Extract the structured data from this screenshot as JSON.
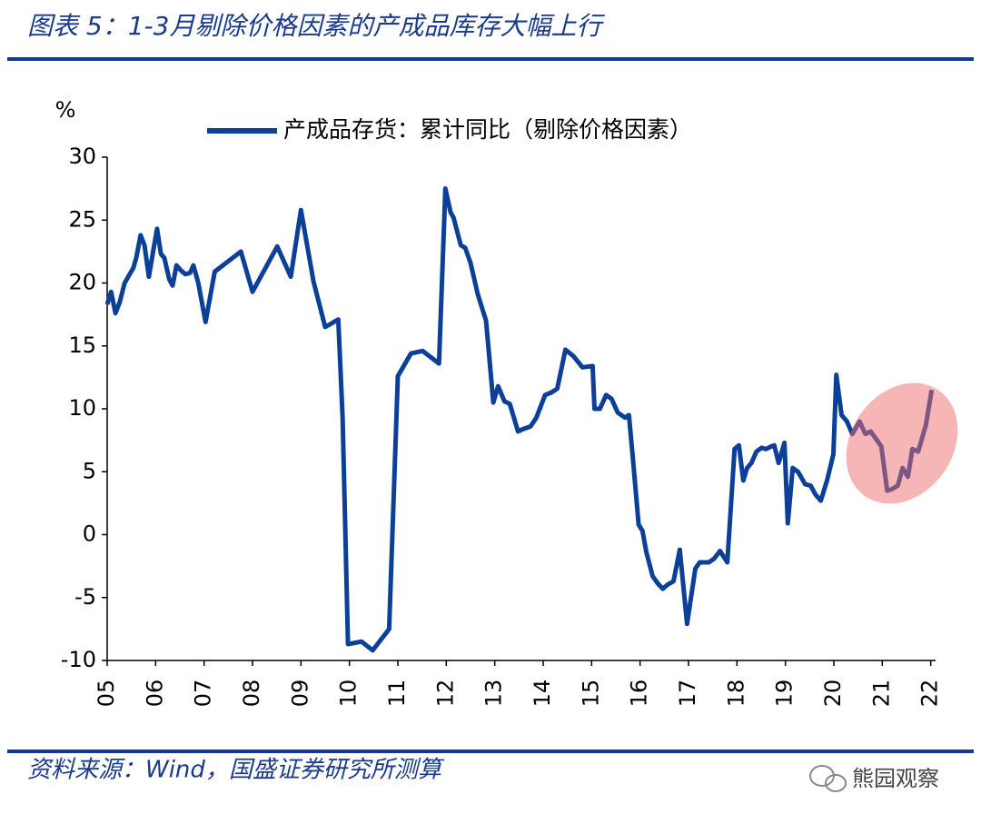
{
  "chart_data": {
    "type": "line",
    "title": "图表 5：1-3月剔除价格因素的产成品库存大幅上行",
    "y_label": "%",
    "source": "资料来源：Wind，国盛证券研究所测算",
    "watermark": "熊园观察",
    "xlim": [
      2005,
      2022.1
    ],
    "xticks": [
      {
        "value": 2005,
        "label": "05"
      },
      {
        "value": 2006,
        "label": "06"
      },
      {
        "value": 2007,
        "label": "07"
      },
      {
        "value": 2008,
        "label": "08"
      },
      {
        "value": 2009,
        "label": "09"
      },
      {
        "value": 2010,
        "label": "10"
      },
      {
        "value": 2011,
        "label": "11"
      },
      {
        "value": 2012,
        "label": "12"
      },
      {
        "value": 2013,
        "label": "13"
      },
      {
        "value": 2014,
        "label": "14"
      },
      {
        "value": 2015,
        "label": "15"
      },
      {
        "value": 2016,
        "label": "16"
      },
      {
        "value": 2017,
        "label": "17"
      },
      {
        "value": 2018,
        "label": "18"
      },
      {
        "value": 2019,
        "label": "19"
      },
      {
        "value": 2020,
        "label": "20"
      },
      {
        "value": 2021,
        "label": "21"
      },
      {
        "value": 2022,
        "label": "22"
      }
    ],
    "ylim": [
      -10,
      30
    ],
    "yticks": [
      30,
      25,
      20,
      15,
      10,
      5,
      0,
      -5,
      -10
    ],
    "grid": false,
    "legend": "top",
    "x": [
      2005.0,
      2005.08,
      2005.17,
      2005.26,
      2005.36,
      2005.54,
      2005.6,
      2005.69,
      2005.77,
      2005.86,
      2005.94,
      2006.03,
      2006.11,
      2006.18,
      2006.28,
      2006.35,
      2006.43,
      2006.52,
      2006.61,
      2006.71,
      2006.78,
      2006.88,
      2007.03,
      2007.22,
      2007.76,
      2008.0,
      2008.51,
      2008.79,
      2009.0,
      2009.26,
      2009.5,
      2009.77,
      2009.86,
      2009.97,
      2010.25,
      2010.48,
      2010.82,
      2011.0,
      2011.27,
      2011.51,
      2011.85,
      2011.98,
      2012.09,
      2012.15,
      2012.3,
      2012.39,
      2012.5,
      2012.65,
      2012.82,
      2012.97,
      2013.07,
      2013.2,
      2013.31,
      2013.48,
      2013.59,
      2013.74,
      2013.86,
      2014.04,
      2014.17,
      2014.29,
      2014.46,
      2014.62,
      2014.81,
      2015.02,
      2015.06,
      2015.17,
      2015.3,
      2015.41,
      2015.54,
      2015.69,
      2015.77,
      2015.86,
      2015.97,
      2016.05,
      2016.13,
      2016.26,
      2016.37,
      2016.47,
      2016.56,
      2016.69,
      2016.82,
      2016.97,
      2017.14,
      2017.23,
      2017.42,
      2017.53,
      2017.65,
      2017.8,
      2017.95,
      2018.04,
      2018.13,
      2018.21,
      2018.3,
      2018.4,
      2018.51,
      2018.6,
      2018.7,
      2018.77,
      2018.86,
      2018.98,
      2019.05,
      2019.15,
      2019.26,
      2019.41,
      2019.52,
      2019.62,
      2019.73,
      2019.86,
      2019.99,
      2020.05,
      2020.16,
      2020.27,
      2020.38,
      2020.53,
      2020.65,
      2020.76,
      2020.89,
      2020.98,
      2021.1,
      2021.19,
      2021.32,
      2021.42,
      2021.53,
      2021.62,
      2021.74,
      2021.9,
      2022.02
    ],
    "series": [
      {
        "name": "产成品存货：累计同比（剔除价格因素）",
        "color": "#0b3f98",
        "values": [
          18.3,
          19.3,
          17.6,
          18.5,
          20.0,
          21.2,
          22.0,
          23.8,
          23.0,
          20.5,
          22.3,
          24.3,
          22.3,
          22.0,
          20.3,
          19.8,
          21.4,
          21.0,
          20.7,
          20.8,
          21.4,
          20.0,
          16.9,
          20.9,
          22.5,
          19.3,
          22.9,
          20.5,
          25.8,
          20.1,
          16.5,
          17.1,
          9.3,
          -8.7,
          -8.5,
          -9.2,
          -7.5,
          12.6,
          14.4,
          14.6,
          13.6,
          27.5,
          25.6,
          25.2,
          23.0,
          22.8,
          21.6,
          19.1,
          17.0,
          10.5,
          11.8,
          10.6,
          10.4,
          8.2,
          8.4,
          8.6,
          9.3,
          11.1,
          11.3,
          11.6,
          14.7,
          14.2,
          13.3,
          13.4,
          10.0,
          10.0,
          11.1,
          10.8,
          9.7,
          9.3,
          9.5,
          5.7,
          0.8,
          0.3,
          -1.4,
          -3.3,
          -3.9,
          -4.3,
          -4.0,
          -3.7,
          -1.2,
          -7.1,
          -2.7,
          -2.2,
          -2.2,
          -1.9,
          -1.3,
          -2.2,
          6.8,
          7.1,
          4.3,
          5.3,
          5.7,
          6.6,
          6.9,
          6.8,
          7.0,
          7.1,
          5.7,
          7.3,
          0.9,
          5.3,
          5.0,
          4.0,
          3.9,
          3.2,
          2.7,
          4.3,
          6.4,
          12.7,
          9.5,
          9.0,
          8.0,
          9.0,
          8.0,
          8.2,
          7.5,
          7.0,
          3.5,
          3.6,
          3.9,
          5.3,
          4.6,
          6.8,
          6.6,
          8.7,
          11.5
        ]
      }
    ]
  }
}
